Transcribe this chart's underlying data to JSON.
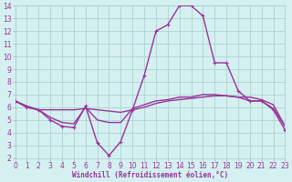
{
  "x": [
    0,
    1,
    2,
    3,
    4,
    5,
    6,
    7,
    8,
    9,
    10,
    11,
    12,
    13,
    14,
    15,
    16,
    17,
    18,
    19,
    20,
    21,
    22,
    23
  ],
  "line1_y": [
    6.5,
    6.0,
    5.8,
    5.0,
    4.5,
    4.4,
    6.1,
    3.2,
    2.2,
    3.3,
    5.8,
    8.5,
    12.0,
    12.5,
    14.0,
    14.0,
    13.2,
    9.5,
    9.5,
    7.3,
    6.5,
    6.5,
    5.8,
    4.2
  ],
  "line2_y": [
    6.5,
    6.0,
    5.8,
    5.2,
    4.8,
    4.7,
    6.0,
    5.0,
    4.8,
    4.8,
    5.9,
    6.2,
    6.5,
    6.6,
    6.8,
    6.8,
    7.0,
    7.0,
    6.9,
    6.8,
    6.5,
    6.5,
    5.9,
    4.5
  ],
  "line3_y": [
    6.5,
    6.1,
    5.8,
    5.8,
    5.8,
    5.8,
    5.9,
    5.8,
    5.7,
    5.6,
    5.8,
    6.0,
    6.3,
    6.5,
    6.6,
    6.7,
    6.8,
    6.9,
    6.9,
    6.8,
    6.8,
    6.6,
    6.2,
    4.5
  ],
  "line_color": "#993399",
  "bg_color": "#d4f0f0",
  "grid_color": "#a8cccc",
  "tick_color": "#993399",
  "xlabel": "Windchill (Refroidissement éolien,°C)",
  "ylim": [
    2,
    14
  ],
  "xlim": [
    0,
    23
  ],
  "yticks": [
    2,
    3,
    4,
    5,
    6,
    7,
    8,
    9,
    10,
    11,
    12,
    13,
    14
  ],
  "xticks": [
    0,
    1,
    2,
    3,
    4,
    5,
    6,
    7,
    8,
    9,
    10,
    11,
    12,
    13,
    14,
    15,
    16,
    17,
    18,
    19,
    20,
    21,
    22,
    23
  ],
  "xlabel_fontsize": 5.5,
  "tick_fontsize": 5.5,
  "linewidth": 1.0,
  "markersize": 2.0
}
